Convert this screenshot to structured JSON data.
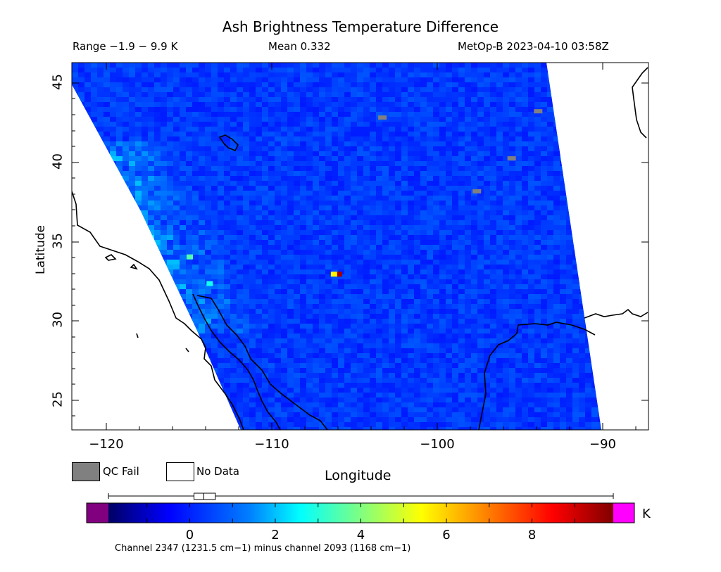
{
  "title": "Ash Brightness Temperature Difference",
  "stats": {
    "range": "Range −1.9 − 9.9 K",
    "mean": "Mean 0.332",
    "source": "MetOp-B 2023-04-10 03:58Z"
  },
  "axes": {
    "xlabel": "Longitude",
    "ylabel": "Latitude",
    "xticks": [
      "−120",
      "−110",
      "−100",
      "−90"
    ],
    "yticks": [
      "45",
      "40",
      "35",
      "30",
      "25"
    ],
    "xlim": [
      -122.3,
      -87.5
    ],
    "ylim": [
      23.0,
      46.4
    ]
  },
  "legend": {
    "qc_fail": "QC Fail",
    "no_data": "No Data",
    "qc_fail_color": "#808080",
    "no_data_color": "#ffffff"
  },
  "colorbar": {
    "unit": "K",
    "ticks": [
      "0",
      "2",
      "4",
      "6",
      "8"
    ],
    "tick_values": [
      0,
      2,
      4,
      6,
      8
    ],
    "vmin": -1.9,
    "vmax": 9.9,
    "under_color": "#800080",
    "over_color": "#ff00ff",
    "boxplot": {
      "min": -1.9,
      "q1": 0.1,
      "median": 0.33,
      "q3": 0.6,
      "max": 9.9
    }
  },
  "footnote": "Channel 2347 (1231.5 cm−1) minus channel 2093 (1168 cm−1)",
  "chart_data": {
    "type": "heatmap",
    "title": "Ash Brightness Temperature Difference",
    "xlabel": "Longitude",
    "ylabel": "Latitude",
    "xlim": [
      -122.3,
      -87.5
    ],
    "ylim": [
      23.0,
      46.4
    ],
    "unit": "K",
    "value_range": [
      -1.9,
      9.9
    ],
    "mean": 0.332,
    "qc_fail_cells": [
      {
        "lon": -103.6,
        "lat": 42.9
      },
      {
        "lon": -94.2,
        "lat": 43.3
      },
      {
        "lon": -95.8,
        "lat": 40.3
      },
      {
        "lon": -97.9,
        "lat": 38.2
      }
    ],
    "hotspots": [
      {
        "lon": -115.2,
        "lat": 34.0,
        "value": 3.5
      },
      {
        "lon": -114.0,
        "lat": 32.3,
        "value": 2.8
      },
      {
        "lon": -106.2,
        "lat": 32.9,
        "value": 9.5
      },
      {
        "lon": -106.5,
        "lat": 32.9,
        "value": 5.5
      }
    ]
  }
}
